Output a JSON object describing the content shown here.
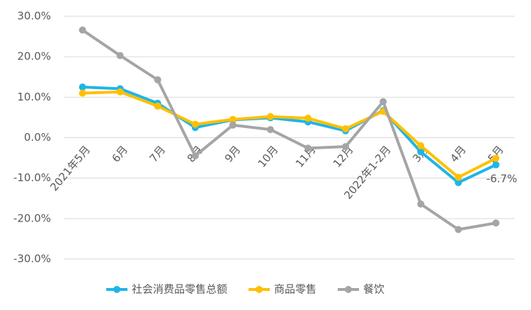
{
  "chart_data": {
    "type": "line",
    "categories": [
      "2021年5月",
      "6月",
      "7月",
      "8月",
      "9月",
      "10月",
      "11月",
      "12月",
      "2022年1-2月",
      "3月",
      "4月",
      "5月"
    ],
    "series": [
      {
        "name": "社会消费品零售总额",
        "color": "#1fb5e8",
        "values": [
          12.5,
          12.1,
          8.5,
          2.5,
          4.4,
          4.9,
          3.9,
          1.7,
          6.7,
          -3.5,
          -11.1,
          -6.7
        ],
        "value_labels": [
          null,
          null,
          null,
          null,
          null,
          null,
          null,
          null,
          null,
          null,
          null,
          "-6.7%"
        ]
      },
      {
        "name": "商品零售",
        "color": "#ffc000",
        "values": [
          11.0,
          11.3,
          7.8,
          3.3,
          4.5,
          5.2,
          4.8,
          2.2,
          6.5,
          -2.0,
          -9.8,
          -5.1
        ]
      },
      {
        "name": "餐饮",
        "color": "#a5a5a5",
        "values": [
          26.6,
          20.3,
          14.3,
          -4.5,
          3.1,
          2.0,
          -2.6,
          -2.2,
          8.9,
          -16.4,
          -22.7,
          -21.1
        ]
      }
    ],
    "ylim": [
      -30,
      30
    ],
    "yticks": [
      {
        "value": -30,
        "label": "-30.0%"
      },
      {
        "value": -20,
        "label": "-20.0%"
      },
      {
        "value": -10,
        "label": "-10.0%"
      },
      {
        "value": 0,
        "label": "0.0%"
      },
      {
        "value": 10,
        "label": "10.0%"
      },
      {
        "value": 20,
        "label": "20.0%"
      },
      {
        "value": 30,
        "label": "30.0%"
      }
    ],
    "grid": true,
    "legend": "bottom"
  }
}
